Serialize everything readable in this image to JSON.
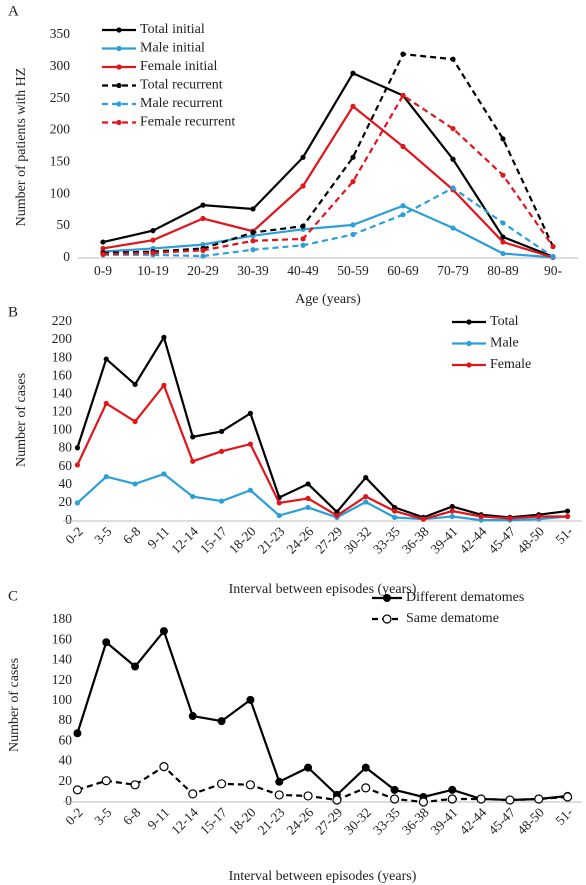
{
  "chart_data": [
    {
      "type": "line",
      "panel": "A",
      "ylabel": "Number of patients with HZ",
      "xlabel": "Age (years)",
      "categories": [
        "0-9",
        "10-19",
        "20-29",
        "30-39",
        "40-49",
        "50-59",
        "60-69",
        "70-79",
        "80-89",
        "90-"
      ],
      "ylim": [
        0,
        350
      ],
      "yticks": [
        0,
        50,
        100,
        150,
        200,
        250,
        300,
        350
      ],
      "legend": "upper left",
      "series": [
        {
          "name": "Total initial",
          "color": "#000000",
          "values": [
            25,
            43,
            83,
            77,
            158,
            290,
            255,
            155,
            33,
            2
          ]
        },
        {
          "name": "Male initial",
          "color": "#2a9fd8",
          "values": [
            10,
            15,
            21,
            35,
            45,
            52,
            82,
            47,
            7,
            1
          ]
        },
        {
          "name": "Female initial",
          "color": "#e0161b",
          "values": [
            15,
            28,
            62,
            42,
            113,
            238,
            175,
            107,
            25,
            1
          ]
        },
        {
          "name": "Total recurrent",
          "color": "#000000",
          "linestyle": "dashed",
          "values": [
            8,
            10,
            15,
            40,
            50,
            158,
            320,
            312,
            187,
            18
          ]
        },
        {
          "name": "Male recurrent",
          "color": "#2a9fd8",
          "linestyle": "dashed",
          "values": [
            5,
            5,
            3,
            13,
            20,
            37,
            68,
            110,
            55,
            2
          ]
        },
        {
          "name": "Female recurrent",
          "color": "#e0161b",
          "linestyle": "dashed",
          "values": [
            6,
            8,
            12,
            27,
            30,
            120,
            255,
            203,
            130,
            18
          ]
        }
      ]
    },
    {
      "type": "line",
      "panel": "B",
      "ylabel": "Number of cases",
      "xlabel": "Interval between episodes (years)",
      "categories": [
        "0-2",
        "3-5",
        "6-8",
        "9-11",
        "12-14",
        "15-17",
        "18-20",
        "21-23",
        "24-26",
        "27-29",
        "30-32",
        "33-35",
        "36-38",
        "39-41",
        "42-44",
        "45-47",
        "48-50",
        "51-"
      ],
      "ylim": [
        0,
        220
      ],
      "yticks": [
        0,
        20,
        40,
        60,
        80,
        100,
        120,
        140,
        160,
        180,
        200,
        220
      ],
      "legend": "upper right",
      "series": [
        {
          "name": "Total",
          "color": "#000000",
          "values": [
            81,
            179,
            151,
            203,
            93,
            99,
            119,
            26,
            41,
            10,
            48,
            15,
            4,
            16,
            7,
            4,
            7,
            11
          ]
        },
        {
          "name": "Male",
          "color": "#2a9fd8",
          "values": [
            20,
            49,
            41,
            52,
            27,
            22,
            34,
            6,
            15,
            4,
            21,
            4,
            2,
            5,
            1,
            1,
            2,
            5
          ]
        },
        {
          "name": "Female",
          "color": "#e0161b",
          "values": [
            62,
            130,
            110,
            150,
            66,
            77,
            85,
            20,
            25,
            6,
            27,
            11,
            2,
            11,
            5,
            3,
            5,
            5
          ]
        }
      ]
    },
    {
      "type": "line",
      "panel": "C",
      "ylabel": "Number of cases",
      "xlabel": "Interval between episodes (years)",
      "categories": [
        "0-2",
        "3-5",
        "6-8",
        "9-11",
        "12-14",
        "15-17",
        "18-20",
        "21-23",
        "24-26",
        "27-29",
        "30-32",
        "33-35",
        "36-38",
        "39-41",
        "42-44",
        "45-47",
        "48-50",
        "51-"
      ],
      "ylim": [
        0,
        180
      ],
      "yticks": [
        0,
        20,
        40,
        60,
        80,
        100,
        120,
        140,
        160,
        180
      ],
      "legend": "upper right",
      "series": [
        {
          "name": "Different dematomes",
          "color": "#000000",
          "values": [
            68,
            158,
            134,
            169,
            85,
            80,
            101,
            20,
            34,
            7,
            34,
            12,
            5,
            12,
            3,
            2,
            3,
            6
          ]
        },
        {
          "name": "Same dematome",
          "color": "#000000",
          "linestyle": "dashed",
          "marker": "open",
          "values": [
            12,
            21,
            17,
            35,
            8,
            18,
            17,
            7,
            6,
            2,
            14,
            3,
            0,
            3,
            3,
            2,
            3,
            5
          ]
        }
      ]
    }
  ]
}
